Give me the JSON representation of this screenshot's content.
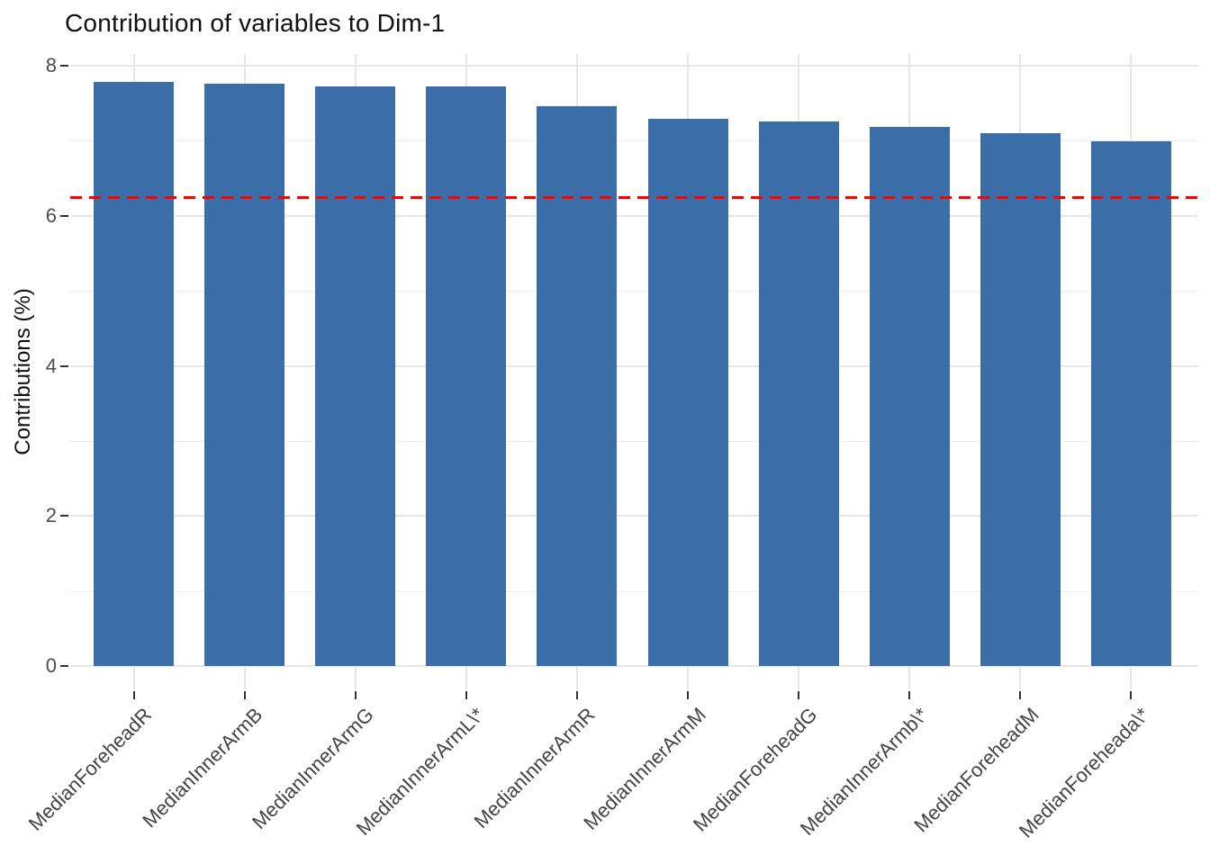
{
  "title": "Contribution of variables to Dim-1",
  "chart_data": {
    "type": "bar",
    "title": "Contribution of variables to Dim-1",
    "xlabel": "",
    "ylabel": "Contributions (%)",
    "categories": [
      "MedianForeheadR",
      "MedianInnerArmB",
      "MedianInnerArmG",
      "MedianInnerArmL\\*",
      "MedianInnerArmR",
      "MedianInnerArmM",
      "MedianForeheadG",
      "MedianInnerArmb\\*",
      "MedianForeheadM",
      "MedianForeheada\\*"
    ],
    "values": [
      7.78,
      7.76,
      7.72,
      7.72,
      7.46,
      7.29,
      7.26,
      7.19,
      7.1,
      6.99
    ],
    "ylim": [
      0,
      8.17
    ],
    "yticks_major": [
      0,
      2,
      4,
      6,
      8
    ],
    "yticks_minor": [
      1,
      3,
      5,
      7
    ],
    "reference_line": {
      "value": 6.25,
      "style": "dashed",
      "color": "#fe0000"
    },
    "bar_color": "#3b6ea8",
    "grid": "major-and-minor-horizontal, major-vertical-at-bars",
    "legend_position": "none",
    "x_label_angle": 45
  },
  "colors": {
    "bar": "#3b6ea8",
    "reference_line": "#fe0000",
    "grid_major": "#e7e7e7",
    "grid_minor": "#ededed",
    "axis_text": "#4d4d4d",
    "tick_mark": "#333333",
    "title_text": "#111111",
    "background": "#ffffff"
  }
}
